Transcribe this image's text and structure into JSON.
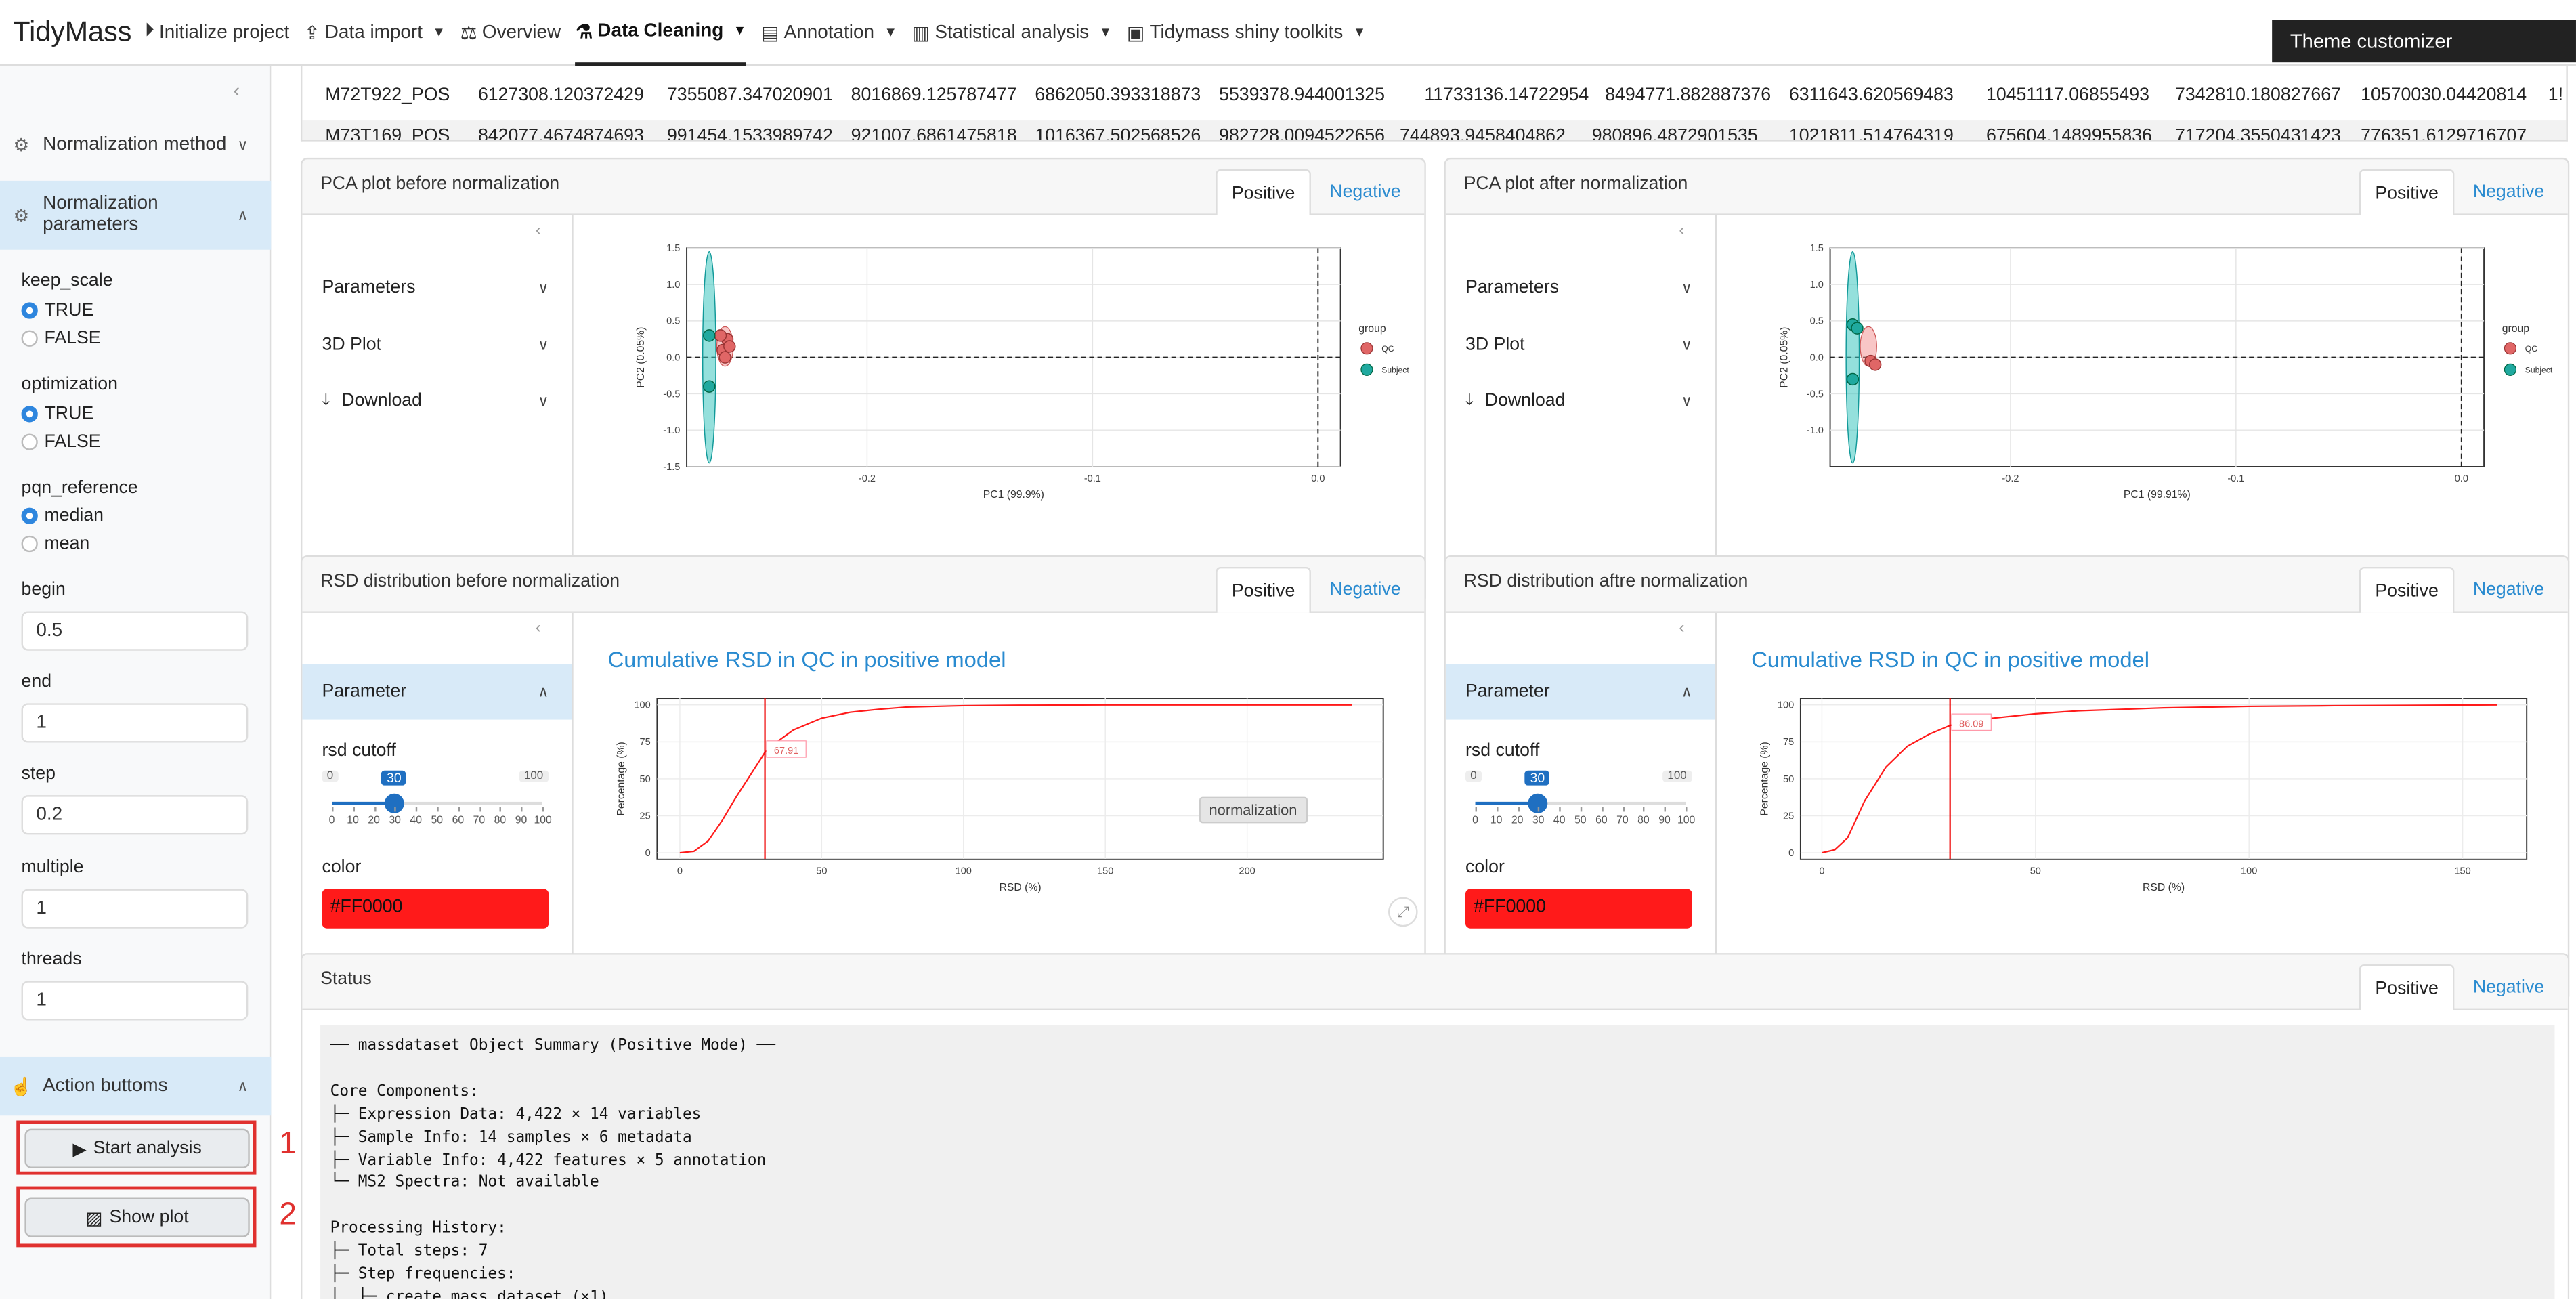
{
  "brand": "TidyMass",
  "nav": {
    "items": [
      {
        "label": "Initialize project",
        "icon": "play-circle-icon"
      },
      {
        "label": "Data import",
        "icon": "upload-icon",
        "dropdown": true
      },
      {
        "label": "Overview",
        "icon": "balance-scale-icon"
      },
      {
        "label": "Data Cleaning",
        "icon": "broom-icon",
        "dropdown": true,
        "active": true
      },
      {
        "label": "Annotation",
        "icon": "table-icon",
        "dropdown": true
      },
      {
        "label": "Statistical analysis",
        "icon": "chart-icon",
        "dropdown": true
      },
      {
        "label": "Tidymass shiny toolkits",
        "icon": "toolbox-icon",
        "dropdown": true
      }
    ],
    "theme": "Theme customizer"
  },
  "sidebar": {
    "norm_method": "Normalization method",
    "norm_params": "Normalization parameters",
    "keep_scale": {
      "label": "keep_scale",
      "opts": [
        "TRUE",
        "FALSE"
      ],
      "selected": "TRUE"
    },
    "optimization": {
      "label": "optimization",
      "opts": [
        "TRUE",
        "FALSE"
      ],
      "selected": "TRUE"
    },
    "pqn_reference": {
      "label": "pqn_reference",
      "opts": [
        "median",
        "mean"
      ],
      "selected": "median"
    },
    "begin": {
      "label": "begin",
      "value": "0.5"
    },
    "end": {
      "label": "end",
      "value": "1"
    },
    "step": {
      "label": "step",
      "value": "0.2"
    },
    "multiple": {
      "label": "multiple",
      "value": "1"
    },
    "threads": {
      "label": "threads",
      "value": "1"
    },
    "actions": "Action buttoms",
    "start": "Start analysis",
    "show": "Show plot",
    "n1": "1",
    "n2": "2"
  },
  "table": {
    "rows": [
      {
        "id": "M72T922_POS",
        "vals": [
          "6127308.120372429",
          "7355087.347020901",
          "8016869.125787477",
          "6862050.393318873",
          "5539378.944001325",
          "11733136.14722954",
          "8494771.882887376",
          "6311643.620569483",
          "10451117.06855493",
          "7342810.180827667",
          "10570030.04420814",
          "1!"
        ]
      },
      {
        "id": "M73T169_POS",
        "vals": [
          "842077.4674874693",
          "991454.1533989742",
          "921007.6861475818",
          "1016367.502568526",
          "982728.0094522656",
          "744893.9458404862",
          "980896.4872901535",
          "1021811.514764319",
          "675604.1489955836",
          "717204.3550431423",
          "776351.6129716707",
          ""
        ]
      }
    ]
  },
  "pca_before": {
    "title": "PCA plot before normalization",
    "tab_pos": "Positive",
    "tab_neg": "Negative",
    "params": "Parameters",
    "plot3d": "3D Plot",
    "download": "Download",
    "xlabel": "PC1 (99.9%)",
    "ylabel": "PC2 (0.05%)",
    "yticks": [
      "1.5",
      "1.0",
      "0.5",
      "0.0",
      "-0.5",
      "-1.0",
      "-1.5"
    ],
    "xticks": [
      "-0.2",
      "-0.1",
      "0.0"
    ],
    "legend_title": "group",
    "legend": [
      "QC",
      "Subject"
    ]
  },
  "pca_after": {
    "title": "PCA plot after normalization",
    "tab_pos": "Positive",
    "tab_neg": "Negative",
    "params": "Parameters",
    "plot3d": "3D Plot",
    "download": "Download",
    "xlabel": "PC1 (99.91%)",
    "ylabel": "PC2 (0.05%)",
    "yticks": [
      "1.5",
      "1.0",
      "0.5",
      "0.0",
      "-0.5",
      "-1.0"
    ],
    "xticks": [
      "-0.2",
      "-0.1",
      "0.0"
    ],
    "legend_title": "group",
    "legend": [
      "QC",
      "Subject"
    ]
  },
  "rsd_before": {
    "title": "RSD distribution before normalization",
    "tab_pos": "Positive",
    "tab_neg": "Negative",
    "param": "Parameter",
    "cutoff_label": "rsd cutoff",
    "slider_min": "0",
    "slider_max": "100",
    "slider_val": "30",
    "slider_ticks": [
      "0",
      "10",
      "20",
      "30",
      "40",
      "50",
      "60",
      "70",
      "80",
      "90",
      "100"
    ],
    "color_label": "color",
    "color_val": "#FF0000",
    "chart_title": "Cumulative RSD in QC in positive model",
    "tooltip": "normalization",
    "xlabel": "RSD (%)",
    "ylabel": "Percentage (%)",
    "marker": "67.91"
  },
  "rsd_after": {
    "title": "RSD distribution aftre normalization",
    "tab_pos": "Positive",
    "tab_neg": "Negative",
    "param": "Parameter",
    "cutoff_label": "rsd cutoff",
    "slider_min": "0",
    "slider_max": "100",
    "slider_val": "30",
    "slider_ticks": [
      "0",
      "10",
      "20",
      "30",
      "40",
      "50",
      "60",
      "70",
      "80",
      "90",
      "100"
    ],
    "color_label": "color",
    "color_val": "#FF0000",
    "chart_title": "Cumulative RSD in QC in positive model",
    "xlabel": "RSD (%)",
    "ylabel": "Percentage (%)",
    "marker": "86.09"
  },
  "status": {
    "title": "Status",
    "tab_pos": "Positive",
    "tab_neg": "Negative",
    "text": "── massdataset Object Summary (Positive Mode) ──\n\nCore Components:\n├─ Expression Data: 4,422 × 14 variables\n├─ Sample Info: 14 samples × 6 metadata\n├─ Variable Info: 4,422 features × 5 annotation\n└─ MS2 Spectra: Not available\n\nProcessing History:\n├─ Total steps: 7\n├─ Step frequencies:\n│  ├─ create_mass_dataset (×1)"
  },
  "chart_data": [
    {
      "type": "scatter",
      "title": "",
      "xlabel": "PC1 (99.9%)",
      "ylabel": "PC2 (0.05%)",
      "xlim": [
        -0.28,
        0.01
      ],
      "ylim": [
        -1.5,
        1.5
      ],
      "series": [
        {
          "name": "QC",
          "x": [
            -0.262,
            -0.264,
            -0.263,
            -0.261,
            -0.265
          ],
          "y": [
            0.25,
            0.1,
            0.0,
            0.15,
            0.3
          ]
        },
        {
          "name": "Subject",
          "x": [
            -0.27,
            -0.27
          ],
          "y": [
            0.3,
            -0.4
          ]
        }
      ]
    },
    {
      "type": "scatter",
      "title": "",
      "xlabel": "PC1 (99.91%)",
      "ylabel": "PC2 (0.05%)",
      "xlim": [
        -0.28,
        0.01
      ],
      "ylim": [
        -1.5,
        1.5
      ],
      "series": [
        {
          "name": "QC",
          "x": [
            -0.262,
            -0.26
          ],
          "y": [
            -0.05,
            -0.1
          ]
        },
        {
          "name": "Subject",
          "x": [
            -0.27,
            -0.268,
            -0.27
          ],
          "y": [
            0.45,
            0.4,
            -0.3
          ]
        }
      ]
    },
    {
      "type": "line",
      "title": "Cumulative RSD in QC in positive model",
      "xlabel": "RSD (%)",
      "ylabel": "Percentage (%)",
      "xlim": [
        -8,
        248
      ],
      "ylim": [
        0,
        100
      ],
      "xticks": [
        0,
        50,
        100,
        150,
        200
      ],
      "yticks": [
        0,
        25,
        50,
        75,
        100
      ],
      "x": [
        0,
        5,
        10,
        15,
        20,
        25,
        30,
        35,
        40,
        50,
        60,
        70,
        80,
        100,
        120,
        150,
        200,
        237
      ],
      "y": [
        0,
        1,
        8,
        22,
        38,
        53,
        67.91,
        76,
        83,
        91,
        95,
        97,
        98.5,
        99.5,
        99.8,
        100,
        100,
        100
      ]
    },
    {
      "type": "line",
      "title": "Cumulative RSD in QC in positive model",
      "xlabel": "RSD (%)",
      "ylabel": "Percentage (%)",
      "xlim": [
        -5,
        165
      ],
      "ylim": [
        0,
        100
      ],
      "xticks": [
        0,
        50,
        100,
        150
      ],
      "yticks": [
        0,
        25,
        50,
        75,
        100
      ],
      "x": [
        0,
        3,
        6,
        10,
        15,
        20,
        25,
        30,
        40,
        50,
        60,
        80,
        100,
        120,
        158
      ],
      "y": [
        0,
        2,
        10,
        35,
        58,
        72,
        80,
        86.09,
        91,
        94,
        96,
        98,
        99,
        99.5,
        100
      ]
    }
  ]
}
